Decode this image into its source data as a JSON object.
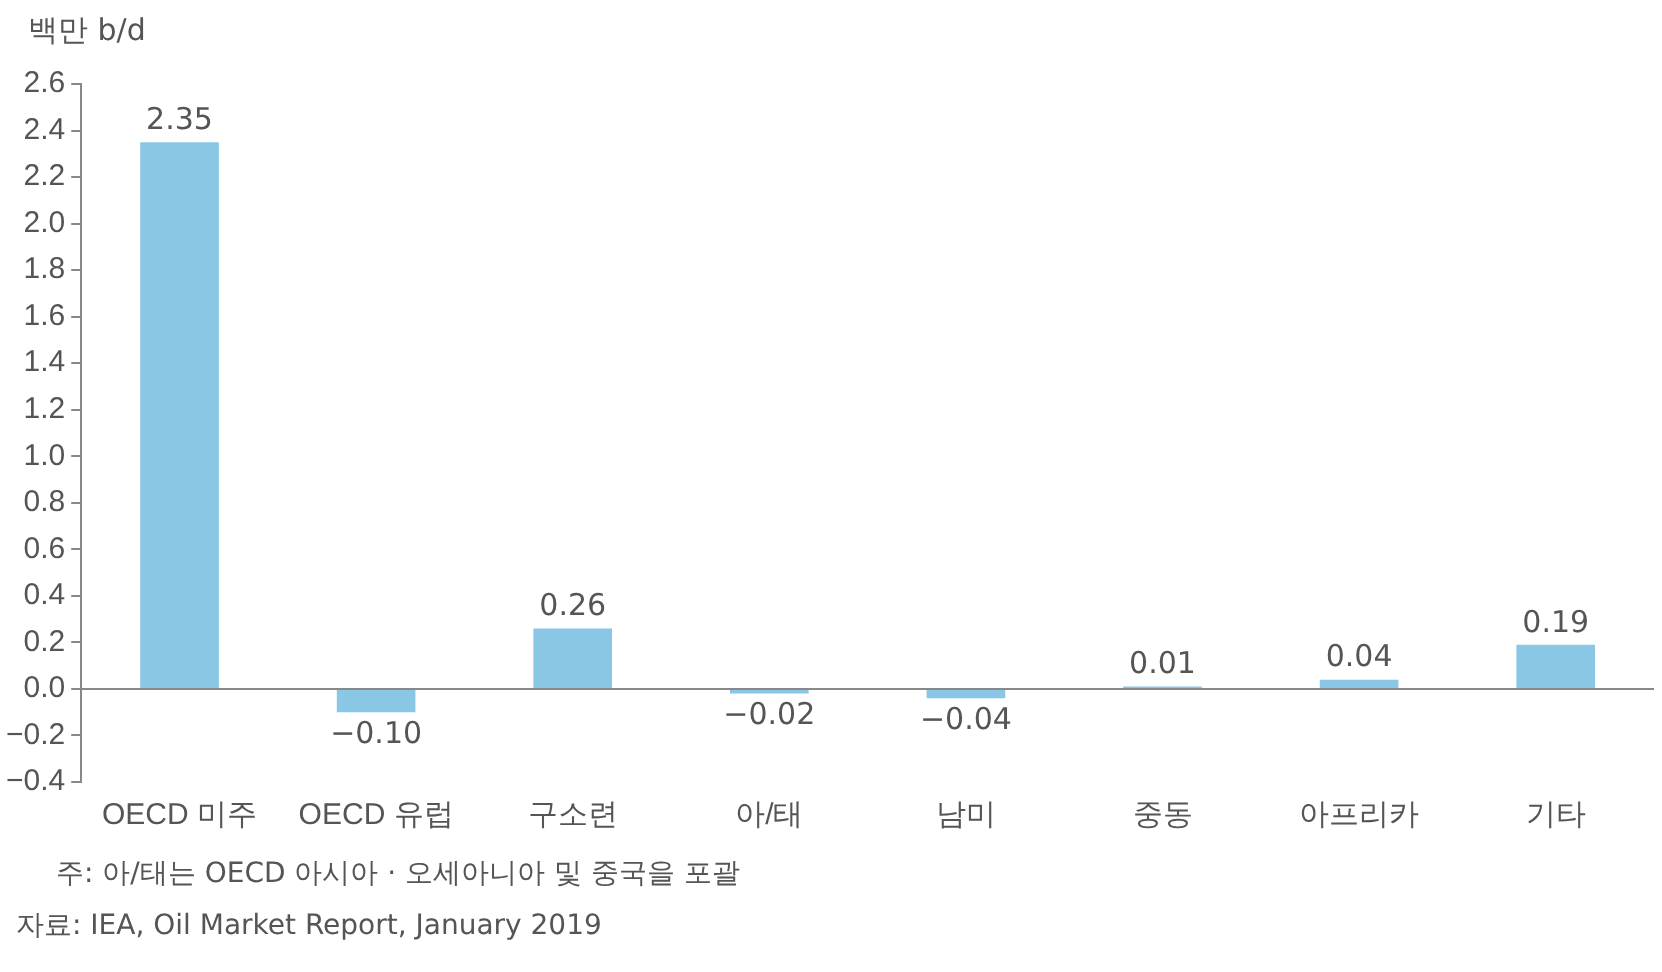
{
  "chart_data": {
    "type": "bar",
    "ylabel": "백만 b/d",
    "categories": [
      "OECD 미주",
      "OECD 유럽",
      "구소련",
      "아/태",
      "남미",
      "중동",
      "아프리카",
      "기타"
    ],
    "values": [
      2.35,
      -0.1,
      0.26,
      -0.02,
      -0.04,
      0.01,
      0.04,
      0.19
    ],
    "value_labels": [
      "2.35",
      "−0.10",
      "0.26",
      "−0.02",
      "−0.04",
      "0.01",
      "0.04",
      "0.19"
    ],
    "color": "#89c7e5",
    "ylim": [
      -0.4,
      2.6
    ],
    "yticks": [
      {
        "value": -0.4,
        "label": "−0.4"
      },
      {
        "value": -0.2,
        "label": "−0.2"
      },
      {
        "value": 0,
        "label": "0.0"
      },
      {
        "value": 0.2,
        "label": "0.2"
      },
      {
        "value": 0.4,
        "label": "0.4"
      },
      {
        "value": 0.6,
        "label": "0.6"
      },
      {
        "value": 0.8,
        "label": "0.8"
      },
      {
        "value": 1,
        "label": "1.0"
      },
      {
        "value": 1.2,
        "label": "1.2"
      },
      {
        "value": 1.4,
        "label": "1.4"
      },
      {
        "value": 1.6,
        "label": "1.6"
      },
      {
        "value": 1.8,
        "label": "1.8"
      },
      {
        "value": 2,
        "label": "2.0"
      },
      {
        "value": 2.2,
        "label": "2.2"
      },
      {
        "value": 2.4,
        "label": "2.4"
      },
      {
        "value": 2.6,
        "label": "2.6"
      }
    ],
    "grid": false,
    "legend": false,
    "ref_lines": [
      {
        "axis": "y",
        "value": 0,
        "color": "#888888"
      }
    ],
    "annotations": [
      "주: 아/태는 OECD 아시아 · 오세아니아 및 중국을 포괄",
      "자료: IEA, Oil Market Report, January 2019"
    ]
  }
}
